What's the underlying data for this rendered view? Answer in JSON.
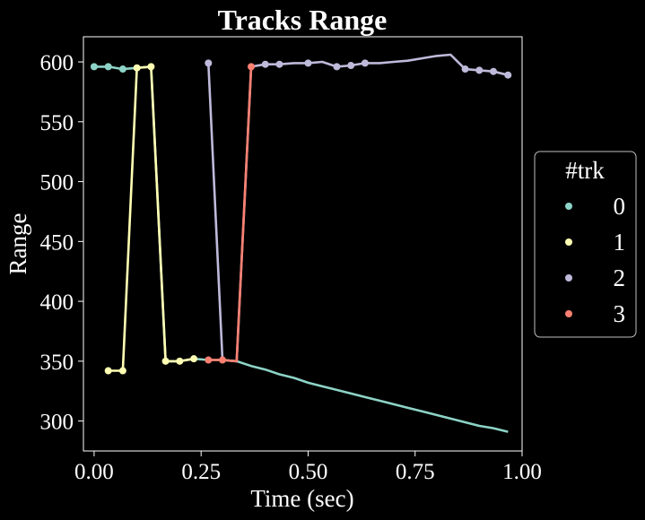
{
  "chart_data": {
    "type": "line",
    "title": "Tracks Range",
    "xlabel": "Time (sec)",
    "ylabel": "Range",
    "xlim": [
      -0.025,
      1.0
    ],
    "ylim": [
      275,
      621
    ],
    "xticks": [
      0.0,
      0.25,
      0.5,
      0.75,
      1.0
    ],
    "xtick_labels": [
      "0.00",
      "0.25",
      "0.50",
      "0.75",
      "1.00"
    ],
    "yticks": [
      300,
      350,
      400,
      450,
      500,
      550,
      600
    ],
    "ytick_labels": [
      "300",
      "350",
      "400",
      "450",
      "500",
      "550",
      "600"
    ],
    "grid": false,
    "legend": {
      "title": "#trk",
      "placement": "center-right"
    },
    "series": [
      {
        "name": "0",
        "color": "#8dd3c7",
        "line": [
          [
            0.0,
            596
          ],
          [
            0.033,
            596
          ],
          [
            0.067,
            594
          ],
          [
            0.1,
            595
          ],
          [
            0.133,
            596
          ],
          [
            0.167,
            350
          ],
          [
            0.2,
            350
          ],
          [
            0.233,
            352
          ],
          [
            0.267,
            351
          ],
          [
            0.3,
            351
          ],
          [
            0.333,
            350
          ],
          [
            0.367,
            346
          ],
          [
            0.4,
            343
          ],
          [
            0.433,
            339
          ],
          [
            0.467,
            336
          ],
          [
            0.5,
            332
          ],
          [
            0.533,
            329
          ],
          [
            0.567,
            326
          ],
          [
            0.6,
            323
          ],
          [
            0.633,
            320
          ],
          [
            0.667,
            317
          ],
          [
            0.7,
            314
          ],
          [
            0.733,
            311
          ],
          [
            0.767,
            308
          ],
          [
            0.8,
            305
          ],
          [
            0.833,
            302
          ],
          [
            0.867,
            299
          ],
          [
            0.9,
            296
          ],
          [
            0.933,
            294
          ],
          [
            0.967,
            291
          ]
        ],
        "markers": [
          [
            0.0,
            596
          ],
          [
            0.033,
            596
          ],
          [
            0.067,
            594
          ]
        ]
      },
      {
        "name": "1",
        "color": "#ffffb3",
        "line": [
          [
            0.033,
            342
          ],
          [
            0.067,
            342
          ],
          [
            0.1,
            595
          ],
          [
            0.133,
            596
          ],
          [
            0.167,
            350
          ],
          [
            0.2,
            350
          ],
          [
            0.233,
            352
          ]
        ],
        "markers": [
          [
            0.033,
            342
          ],
          [
            0.067,
            342
          ],
          [
            0.1,
            595
          ],
          [
            0.133,
            596
          ],
          [
            0.167,
            350
          ],
          [
            0.2,
            350
          ],
          [
            0.233,
            352
          ]
        ]
      },
      {
        "name": "2",
        "color": "#bebada",
        "line": [
          [
            0.267,
            599
          ],
          [
            0.3,
            351
          ],
          [
            0.333,
            350
          ],
          [
            0.367,
            596
          ],
          [
            0.4,
            598
          ],
          [
            0.433,
            598
          ],
          [
            0.467,
            599
          ],
          [
            0.5,
            599
          ],
          [
            0.533,
            600
          ],
          [
            0.567,
            596
          ],
          [
            0.6,
            597
          ],
          [
            0.633,
            599
          ],
          [
            0.667,
            599
          ],
          [
            0.7,
            600
          ],
          [
            0.733,
            601
          ],
          [
            0.767,
            603
          ],
          [
            0.8,
            605
          ],
          [
            0.833,
            606
          ],
          [
            0.867,
            594
          ],
          [
            0.9,
            593
          ],
          [
            0.933,
            592
          ],
          [
            0.967,
            589
          ]
        ],
        "markers": [
          [
            0.267,
            599
          ],
          [
            0.4,
            598
          ],
          [
            0.433,
            598
          ],
          [
            0.5,
            599
          ],
          [
            0.567,
            596
          ],
          [
            0.6,
            597
          ],
          [
            0.633,
            599
          ],
          [
            0.867,
            594
          ],
          [
            0.9,
            593
          ],
          [
            0.933,
            592
          ],
          [
            0.967,
            589
          ]
        ]
      },
      {
        "name": "3",
        "color": "#fb8072",
        "line": [
          [
            0.267,
            351
          ],
          [
            0.3,
            351
          ],
          [
            0.333,
            350
          ],
          [
            0.367,
            596
          ]
        ],
        "markers": [
          [
            0.267,
            351
          ],
          [
            0.3,
            351
          ],
          [
            0.367,
            596
          ]
        ]
      }
    ]
  }
}
